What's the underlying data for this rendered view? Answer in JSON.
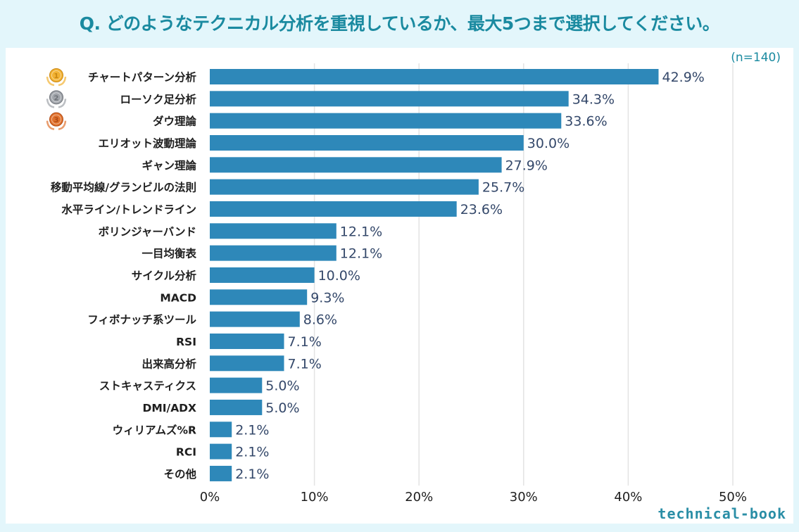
{
  "header": {
    "title": "Q. どのようなテクニカル分析を重視しているか、最大5つまで選択してください。",
    "sample_size": "(n=140)"
  },
  "branding": {
    "logo_text": "technical-book"
  },
  "colors": {
    "background": "#e3f6fb",
    "title": "#1a8aa0",
    "bar": "#2e88b9",
    "value_label": "#34486a",
    "gridline": "#e3e3e3",
    "medal_gold": "#f2b233",
    "medal_silver": "#a0a4aa",
    "medal_bronze": "#e0722e"
  },
  "chart_data": {
    "type": "bar",
    "orientation": "horizontal",
    "title": "Q. どのようなテクニカル分析を重視しているか、最大5つまで選択してください。",
    "xlabel": "",
    "ylabel": "",
    "xlim": [
      0,
      50
    ],
    "x_ticks": [
      0,
      10,
      20,
      30,
      40,
      50
    ],
    "x_tick_labels": [
      "0%",
      "10%",
      "20%",
      "30%",
      "40%",
      "50%"
    ],
    "grid": true,
    "annotation": "(n=140)",
    "categories": [
      "チャートパターン分析",
      "ローソク足分析",
      "ダウ理論",
      "エリオット波動理論",
      "ギャン理論",
      "移動平均線/グランビルの法則",
      "水平ライン/トレンドライン",
      "ボリンジャーバンド",
      "一目均衡表",
      "サイクル分析",
      "MACD",
      "フィボナッチ系ツール",
      "RSI",
      "出来高分析",
      "ストキャスティクス",
      "DMI/ADX",
      "ウィリアムズ%R",
      "RCI",
      "その他"
    ],
    "values": [
      42.9,
      34.3,
      33.6,
      30.0,
      27.9,
      25.7,
      23.6,
      12.1,
      12.1,
      10.0,
      9.3,
      8.6,
      7.1,
      7.1,
      5.0,
      5.0,
      2.1,
      2.1,
      2.1
    ],
    "value_labels": [
      "42.9%",
      "34.3%",
      "33.6%",
      "30.0%",
      "27.9%",
      "25.7%",
      "23.6%",
      "12.1%",
      "12.1%",
      "10.0%",
      "9.3%",
      "8.6%",
      "7.1%",
      "7.1%",
      "5.0%",
      "5.0%",
      "2.1%",
      "2.1%",
      "2.1%"
    ],
    "rank_medals": [
      {
        "rank": "1",
        "medal": "gold-medal-icon"
      },
      {
        "rank": "2",
        "medal": "silver-medal-icon"
      },
      {
        "rank": "3",
        "medal": "bronze-medal-icon"
      }
    ]
  }
}
